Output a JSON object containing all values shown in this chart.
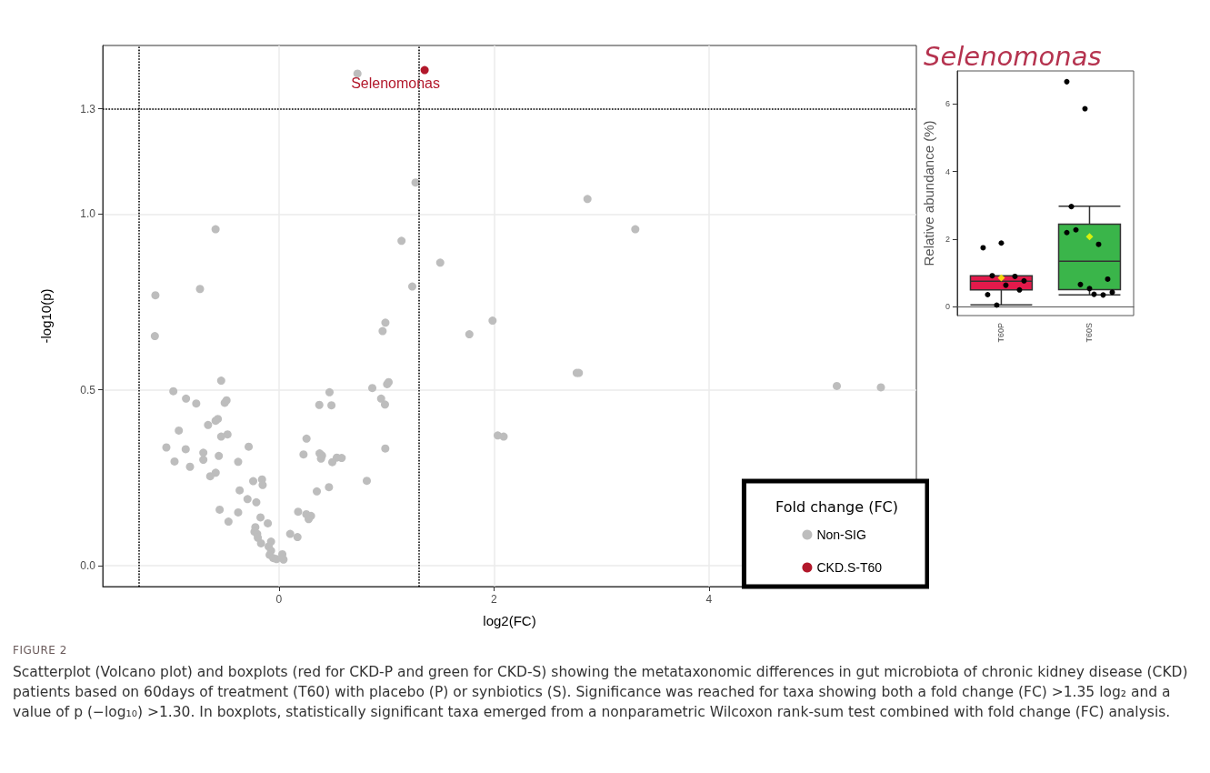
{
  "chart_data": [
    {
      "type": "scatter",
      "xlabel": "log2(FC)",
      "ylabel": "-log10(p)",
      "xlim": [
        -1.64,
        5.93
      ],
      "xticks": [
        0,
        2,
        4
      ],
      "ylim": [
        -0.06,
        1.48
      ],
      "yticks": [
        {
          "value": 0,
          "label": "0.0"
        },
        {
          "value": 0.5,
          "label": "0.5"
        },
        {
          "value": 1,
          "label": "1.0"
        },
        {
          "value": 1.3,
          "label": "1.3"
        }
      ],
      "grid": true,
      "legend": "bottom right",
      "legend_title": "Fold change (FC)",
      "marker": "circle",
      "series": [
        {
          "name": "Non-SIG",
          "color": "#bdbdbd",
          "x": [
            0.73,
            1.27,
            -0.59,
            1.14,
            1.5,
            1.24,
            -0.735,
            -1.15,
            -1.155,
            0.99,
            0.964,
            -0.538,
            -0.983,
            1.02,
            1.006,
            0.868,
            -0.865,
            -0.77,
            -0.488,
            -0.505,
            0.47,
            0.375,
            0.488,
            0.95,
            0.986,
            -0.569,
            -0.59,
            -0.66,
            -0.932,
            -0.479,
            -0.538,
            0.256,
            -1.048,
            -0.868,
            -0.282,
            0.989,
            -0.704,
            0.228,
            0.378,
            0.4,
            0.391,
            0.538,
            0.583,
            0.496,
            -0.704,
            -0.56,
            -0.972,
            -0.828,
            -0.38,
            0.817,
            -0.64,
            -0.589,
            -0.24,
            -0.158,
            -0.152,
            -0.366,
            0.465,
            0.352,
            -0.293,
            -0.211,
            -0.552,
            -0.38,
            0.178,
            0.254,
            0.298,
            0.276,
            -0.172,
            -0.104,
            -0.47,
            -0.22,
            -0.228,
            -0.203,
            -0.197,
            0.104,
            0.172,
            -0.167,
            -0.074,
            -0.096,
            -0.074,
            -0.087,
            -0.053,
            -0.023,
            0.031,
            0.042,
            2.87,
            3.315,
            1.987,
            1.771,
            2.77,
            2.79,
            5.19,
            5.6,
            2.035,
            2.09
          ],
          "values": [
            1.4,
            1.09,
            0.957,
            0.924,
            0.862,
            0.794,
            0.787,
            0.769,
            0.653,
            0.691,
            0.667,
            0.526,
            0.496,
            0.522,
            0.516,
            0.505,
            0.475,
            0.461,
            0.47,
            0.463,
            0.493,
            0.457,
            0.456,
            0.475,
            0.458,
            0.417,
            0.412,
            0.4,
            0.384,
            0.373,
            0.367,
            0.361,
            0.336,
            0.331,
            0.338,
            0.333,
            0.321,
            0.316,
            0.319,
            0.313,
            0.304,
            0.307,
            0.306,
            0.294,
            0.301,
            0.312,
            0.296,
            0.281,
            0.295,
            0.241,
            0.254,
            0.264,
            0.24,
            0.245,
            0.229,
            0.214,
            0.223,
            0.211,
            0.189,
            0.18,
            0.159,
            0.151,
            0.153,
            0.146,
            0.141,
            0.132,
            0.137,
            0.12,
            0.125,
            0.109,
            0.096,
            0.09,
            0.079,
            0.09,
            0.081,
            0.063,
            0.068,
            0.054,
            0.042,
            0.03,
            0.021,
            0.018,
            0.032,
            0.017,
            1.043,
            0.957,
            0.697,
            0.658,
            0.548,
            0.548,
            0.511,
            0.507,
            0.37,
            0.367
          ]
        },
        {
          "name": "CKD.S-T60",
          "color": "#b2182b",
          "x": [
            1.355
          ],
          "values": [
            1.41
          ]
        }
      ],
      "ref_lines": [
        {
          "axis": "x",
          "value": -1.3,
          "color": "#000000",
          "line_style": "dotted"
        },
        {
          "axis": "x",
          "value": 1.3,
          "color": "#000000",
          "line_style": "dotted"
        },
        {
          "axis": "y",
          "value": 1.3,
          "color": "#000000",
          "line_style": "dotted"
        }
      ],
      "annotations": [
        {
          "text": "Selenomonas",
          "x": 1.355,
          "y": 1.41
        },
        "FIGURE 2",
        "Scatterplot (Volcano plot) and boxplots (red for CKD-P and green for CKD-S) showing the metataxonomic differences in gut microbiota of chronic kidney disease (CKD) patients based on 60days of treatment (T60) with placebo (P) or synbiotics (S). Significance was reached for taxa showing both a fold change (FC) >1.35 log₂ and a value of p (−log₁₀) >1.30. In boxplots, statistically significant taxa emerged from a nonparametric Wilcoxon rank-sum test combined with fold change (FC) analysis."
      ]
    },
    {
      "type": "box",
      "title": "Selenomonas",
      "ylabel": "Relative abundance (%)",
      "categories": [
        "T60P",
        "T60S"
      ],
      "ylim": [
        -0.27,
        6.98
      ],
      "yticks": [
        0,
        2,
        4,
        6
      ],
      "series": [
        {
          "type": "box",
          "colors": [
            "#e31a4b",
            "#3ab54a"
          ],
          "boxes": [
            {
              "low": 0.05,
              "q1": 0.49,
              "median": 0.75,
              "q3": 0.91,
              "high": 0.91,
              "mean": 0.85
            },
            {
              "low": 0.34,
              "q1": 0.5,
              "median": 1.34,
              "q3": 2.44,
              "high": 2.97,
              "mean": 2.07
            }
          ]
        },
        {
          "type": "scatter",
          "color": "#000000",
          "x": [
            "T60P",
            "T60P",
            "T60P",
            "T60P",
            "T60P",
            "T60P",
            "T60P",
            "T60P",
            "T60P",
            "T60S",
            "T60S",
            "T60S",
            "T60S",
            "T60S",
            "T60S",
            "T60S",
            "T60S",
            "T60S",
            "T60S",
            "T60S",
            "T60S"
          ],
          "values": [
            0.91,
            0.76,
            0.63,
            0.35,
            0.49,
            1.88,
            1.74,
            0.89,
            0.04,
            2.19,
            1.84,
            0.65,
            0.42,
            0.36,
            2.27,
            0.81,
            0.53,
            2.96,
            0.34,
            5.86,
            6.66
          ]
        }
      ]
    }
  ]
}
